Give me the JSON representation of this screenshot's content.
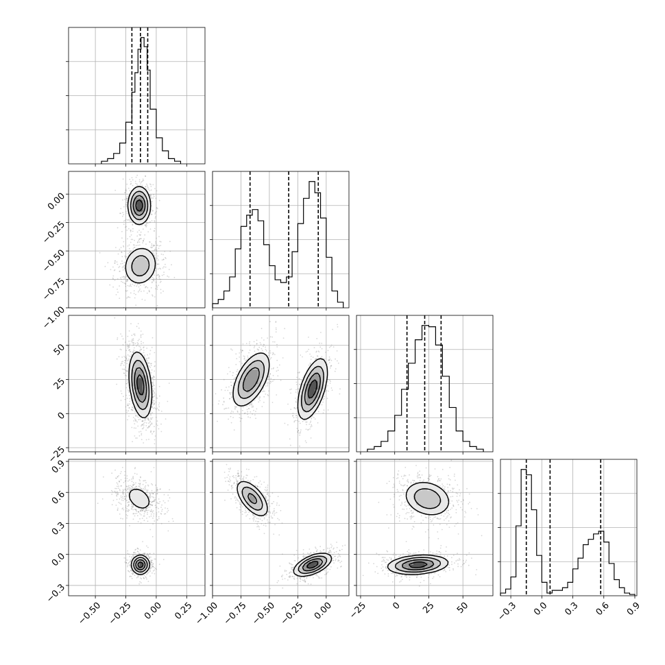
{
  "chart_data": {
    "type": "corner",
    "grid": true,
    "parameters": [
      {
        "xlim": [
          -0.72,
          0.4
        ],
        "xticks": [
          -0.5,
          -0.25,
          0.0,
          0.25
        ],
        "xtick_labels": [
          "−0.50",
          "−0.25",
          "0.00",
          "0.25"
        ]
      },
      {
        "xlim": [
          -1.0,
          0.2
        ],
        "xticks": [
          -1.0,
          -0.75,
          -0.5,
          -0.25,
          0.0
        ],
        "xtick_labels": [
          "−1.00",
          "−0.75",
          "−0.50",
          "−0.25",
          "0.00"
        ],
        "yticks": [
          0.0,
          -0.25,
          -0.5,
          -0.75,
          -1.0
        ],
        "ytick_labels": [
          "0.00",
          "−0.25",
          "−0.50",
          "−0.75",
          "−1.00"
        ]
      },
      {
        "xlim": [
          -28,
          72
        ],
        "xticks": [
          -25,
          0,
          25,
          50
        ],
        "xtick_labels": [
          "−25",
          "0",
          "25",
          "50"
        ],
        "yticks": [
          50,
          25,
          0,
          -25
        ],
        "ytick_labels": [
          "50",
          "25",
          "0",
          "−25"
        ]
      },
      {
        "xlim": [
          -0.4,
          0.92
        ],
        "xticks": [
          -0.3,
          0.0,
          0.3,
          0.6,
          0.9
        ],
        "xtick_labels": [
          "−0.3",
          "0.0",
          "0.3",
          "0.6",
          "0.9"
        ],
        "yticks": [
          0.9,
          0.6,
          0.3,
          0.0,
          -0.3
        ],
        "ytick_labels": [
          "0.9",
          "0.6",
          "0.3",
          "0.0",
          "−0.3"
        ]
      }
    ],
    "histograms": [
      {
        "param": 0,
        "bin_edges": [
          -0.45,
          -0.4,
          -0.35,
          -0.3,
          -0.25,
          -0.2,
          -0.175,
          -0.15,
          -0.125,
          -0.1,
          -0.075,
          -0.05,
          0.0,
          0.05,
          0.1,
          0.15,
          0.2
        ],
        "counts": [
          2,
          4,
          8,
          16,
          32,
          55,
          70,
          88,
          97,
          90,
          72,
          42,
          20,
          10,
          4,
          2
        ],
        "quantiles": [
          -0.2,
          -0.13,
          -0.07
        ]
      },
      {
        "param": 1,
        "bin_edges": [
          -1.0,
          -0.95,
          -0.9,
          -0.85,
          -0.8,
          -0.75,
          -0.7,
          -0.65,
          -0.6,
          -0.55,
          -0.5,
          -0.45,
          -0.4,
          -0.35,
          -0.3,
          -0.25,
          -0.2,
          -0.15,
          -0.1,
          -0.05,
          0.0,
          0.05,
          0.1,
          0.15
        ],
        "counts": [
          3,
          6,
          12,
          22,
          42,
          58,
          66,
          70,
          62,
          45,
          30,
          20,
          18,
          22,
          40,
          60,
          78,
          90,
          82,
          64,
          36,
          12,
          4
        ],
        "quantiles": [
          -0.67,
          -0.33,
          -0.07
        ]
      },
      {
        "param": 2,
        "bin_edges": [
          -20,
          -15,
          -10,
          -5,
          0,
          5,
          10,
          15,
          20,
          25,
          30,
          35,
          40,
          45,
          50,
          55,
          60,
          65
        ],
        "counts": [
          2,
          4,
          8,
          16,
          28,
          48,
          68,
          86,
          97,
          96,
          82,
          58,
          34,
          16,
          8,
          4,
          2
        ],
        "quantiles": [
          9,
          22,
          34
        ]
      },
      {
        "param": 3,
        "bin_edges": [
          -0.4,
          -0.35,
          -0.3,
          -0.25,
          -0.2,
          -0.15,
          -0.1,
          -0.05,
          0.0,
          0.05,
          0.1,
          0.15,
          0.2,
          0.25,
          0.3,
          0.35,
          0.4,
          0.45,
          0.5,
          0.55,
          0.6,
          0.65,
          0.7,
          0.75,
          0.8,
          0.85,
          0.9
        ],
        "counts": [
          2,
          5,
          14,
          52,
          94,
          90,
          64,
          30,
          10,
          2,
          4,
          4,
          6,
          10,
          20,
          28,
          38,
          42,
          46,
          48,
          40,
          24,
          12,
          6,
          2,
          1
        ],
        "quantiles": [
          -0.15,
          0.08,
          0.57
        ]
      }
    ],
    "pair_panels": [
      {
        "xparam": 0,
        "yparam": 1,
        "modes": [
          {
            "cx": -0.14,
            "cy": -0.1,
            "sx": 0.05,
            "sy": 0.09,
            "rho": 0.0,
            "w": 0.5
          },
          {
            "cx": -0.13,
            "cy": -0.63,
            "sx": 0.08,
            "sy": 0.1,
            "rho": 0.1,
            "w": 0.5
          }
        ]
      },
      {
        "xparam": 0,
        "yparam": 2,
        "modes": [
          {
            "cx": -0.13,
            "cy": 21,
            "sx": 0.05,
            "sy": 13,
            "rho": -0.3,
            "w": 1.0
          }
        ]
      },
      {
        "xparam": 1,
        "yparam": 2,
        "modes": [
          {
            "cx": -0.66,
            "cy": 25,
            "sx": 0.09,
            "sy": 11,
            "rho": 0.55,
            "w": 0.5
          },
          {
            "cx": -0.12,
            "cy": 18,
            "sx": 0.07,
            "sy": 12,
            "rho": 0.55,
            "w": 0.5
          }
        ]
      },
      {
        "xparam": 0,
        "yparam": 3,
        "modes": [
          {
            "cx": -0.14,
            "cy": 0.54,
            "sx": 0.08,
            "sy": 0.09,
            "rho": -0.35,
            "w": 0.5
          },
          {
            "cx": -0.13,
            "cy": -0.1,
            "sx": 0.04,
            "sy": 0.05,
            "rho": 0.0,
            "w": 0.5
          }
        ]
      },
      {
        "xparam": 1,
        "yparam": 3,
        "modes": [
          {
            "cx": -0.65,
            "cy": 0.54,
            "sx": 0.08,
            "sy": 0.1,
            "rho": -0.6,
            "w": 0.5
          },
          {
            "cx": -0.12,
            "cy": -0.1,
            "sx": 0.09,
            "sy": 0.06,
            "rho": 0.55,
            "w": 0.5
          }
        ]
      },
      {
        "xparam": 2,
        "yparam": 3,
        "modes": [
          {
            "cx": 24,
            "cy": 0.54,
            "sx": 10,
            "sy": 0.1,
            "rho": -0.2,
            "w": 0.5
          },
          {
            "cx": 17,
            "cy": -0.1,
            "sx": 12,
            "sy": 0.05,
            "rho": 0.2,
            "w": 0.5
          }
        ]
      }
    ]
  }
}
